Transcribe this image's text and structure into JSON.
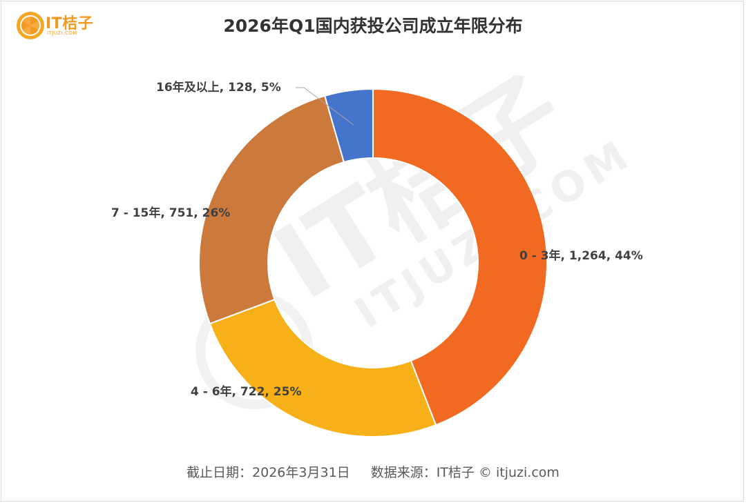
{
  "header": {
    "logo_text": "IT桔子",
    "logo_sub": "ITJUZI.COM",
    "title": "2026年Q1国内获投公司成立年限分布"
  },
  "watermark": {
    "main": "IT桔子",
    "sub": "ITJUZI.COM"
  },
  "chart_data": {
    "type": "pie",
    "subtype": "donut",
    "title": "2026年Q1国内获投公司成立年限分布",
    "categories": [
      "0 - 3年",
      "4 - 6年",
      "7 - 15年",
      "16年及以上"
    ],
    "values": [
      1264,
      722,
      751,
      128
    ],
    "percents": [
      "44%",
      "25%",
      "26%",
      "5%"
    ],
    "labels": [
      "0 - 3年, 1,264, 44%",
      "4 - 6年, 722, 25%",
      "7 - 15年, 751, 26%",
      "16年及以上, 128, 5%"
    ],
    "colors": [
      "#f26a21",
      "#f8b018",
      "#cc7a3c",
      "#4574cd"
    ],
    "legend": "none"
  },
  "footer": {
    "date_text": "截止日期：2026年3月31日",
    "source_text": "数据来源：IT桔子 © itjuzi.com"
  }
}
